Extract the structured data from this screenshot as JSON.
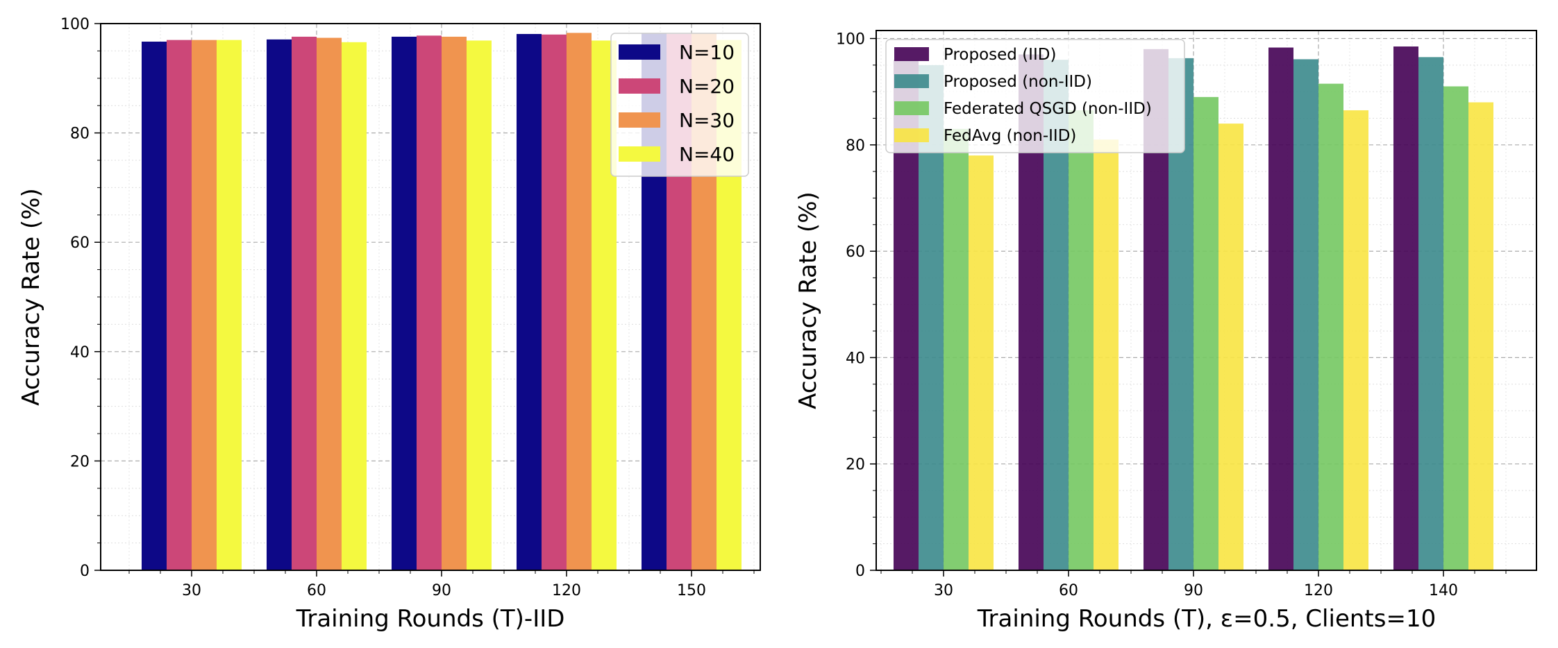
{
  "chart_data": [
    {
      "type": "bar",
      "categories": [
        "30",
        "60",
        "90",
        "120",
        "150"
      ],
      "series": [
        {
          "name": "N=10",
          "color": "#0d0887",
          "values": [
            96.7,
            97.1,
            97.6,
            98.1,
            98.2
          ]
        },
        {
          "name": "N=20",
          "color": "#cc4778",
          "values": [
            97.0,
            97.6,
            97.8,
            98.0,
            98.1
          ]
        },
        {
          "name": "N=30",
          "color": "#f0944f",
          "values": [
            97.0,
            97.4,
            97.6,
            98.3,
            98.2
          ]
        },
        {
          "name": "N=40",
          "color": "#f4f940",
          "values": [
            97.0,
            96.6,
            96.9,
            96.9,
            97.0
          ]
        }
      ],
      "title": "",
      "xlabel": "Training Rounds (T)-IID",
      "ylabel": "Accuracy Rate (%)",
      "ylim": [
        0,
        100
      ],
      "yticks": [
        "0",
        "20",
        "40",
        "60",
        "80",
        "100"
      ],
      "grid": true,
      "legend_position": "top-right"
    },
    {
      "type": "bar",
      "categories": [
        "30",
        "60",
        "90",
        "120",
        "140"
      ],
      "series": [
        {
          "name": "Proposed (IID)",
          "color": "#440154",
          "values": [
            96.0,
            97.0,
            98.0,
            98.3,
            98.5
          ]
        },
        {
          "name": "Proposed (non-IID)",
          "color": "#3b8a8c",
          "values": [
            95.0,
            96.0,
            96.3,
            96.1,
            96.5
          ]
        },
        {
          "name": "Federated QSGD (non-IID)",
          "color": "#74c862",
          "values": [
            83.0,
            86.5,
            89.0,
            91.5,
            91.0
          ]
        },
        {
          "name": "FedAvg (non-IID)",
          "color": "#f8e442",
          "values": [
            78.0,
            81.0,
            84.0,
            86.5,
            88.0
          ]
        }
      ],
      "title": "",
      "xlabel": "Training Rounds (T), ε=0.5, Clients=10",
      "ylabel": "Accuracy Rate (%)",
      "ylim": [
        0,
        101.5
      ],
      "yticks": [
        "0",
        "20",
        "40",
        "60",
        "80",
        "100"
      ],
      "grid": true,
      "legend_position": "top-left"
    }
  ]
}
